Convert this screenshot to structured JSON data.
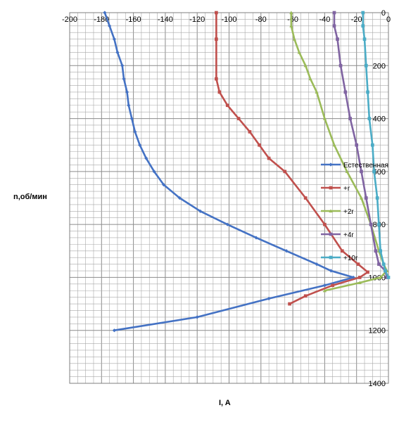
{
  "chart_data": {
    "type": "line",
    "xlabel": "I, A",
    "ylabel": "n,об/мин",
    "xlim": [
      -200,
      0
    ],
    "ylim": [
      0,
      1400
    ],
    "x_axis_position": "top",
    "y_axis_position": "right",
    "y_inverted": true,
    "x_ticks": [
      -200,
      -180,
      -160,
      -140,
      -120,
      -100,
      -80,
      -60,
      -40,
      -20,
      0
    ],
    "y_ticks": [
      0,
      200,
      400,
      600,
      800,
      1000,
      1200,
      1400
    ],
    "grid": true,
    "legend_position": "right",
    "series": [
      {
        "name": "Естественная",
        "color": "#4472C4",
        "points": [
          [
            -178,
            0
          ],
          [
            -175,
            50
          ],
          [
            -172,
            100
          ],
          [
            -170,
            150
          ],
          [
            -167,
            200
          ],
          [
            -166,
            250
          ],
          [
            -164,
            300
          ],
          [
            -163,
            350
          ],
          [
            -161,
            400
          ],
          [
            -159,
            450
          ],
          [
            -156,
            500
          ],
          [
            -152,
            550
          ],
          [
            -147,
            600
          ],
          [
            -141,
            650
          ],
          [
            -131,
            700
          ],
          [
            -118,
            750
          ],
          [
            -101,
            800
          ],
          [
            -83,
            850
          ],
          [
            -64,
            900
          ],
          [
            -45,
            950
          ],
          [
            -36,
            975
          ],
          [
            -22,
            1000
          ],
          [
            -40,
            1030
          ],
          [
            -75,
            1080
          ],
          [
            -120,
            1150
          ],
          [
            -172,
            1200
          ]
        ]
      },
      {
        "name": "+r",
        "color": "#C0504D",
        "points": [
          [
            -108,
            0
          ],
          [
            -108,
            100
          ],
          [
            -108,
            250
          ],
          [
            -106,
            300
          ],
          [
            -101,
            350
          ],
          [
            -94,
            400
          ],
          [
            -87,
            450
          ],
          [
            -81,
            500
          ],
          [
            -75,
            550
          ],
          [
            -65,
            600
          ],
          [
            -52,
            700
          ],
          [
            -40,
            800
          ],
          [
            -29,
            900
          ],
          [
            -19,
            950
          ],
          [
            -13,
            980
          ],
          [
            -18,
            1000
          ],
          [
            -35,
            1030
          ],
          [
            -52,
            1070
          ],
          [
            -62,
            1100
          ]
        ]
      },
      {
        "name": "+2r",
        "color": "#9BBB59",
        "points": [
          [
            -61,
            0
          ],
          [
            -61,
            50
          ],
          [
            -59,
            100
          ],
          [
            -56,
            150
          ],
          [
            -52,
            200
          ],
          [
            -49,
            250
          ],
          [
            -45,
            300
          ],
          [
            -40,
            400
          ],
          [
            -34,
            500
          ],
          [
            -26,
            600
          ],
          [
            -17,
            700
          ],
          [
            -11,
            800
          ],
          [
            -6,
            900
          ],
          [
            -3,
            950
          ],
          [
            -1,
            975
          ],
          [
            -5,
            1000
          ],
          [
            -18,
            1020
          ],
          [
            -40,
            1050
          ]
        ]
      },
      {
        "name": "+4r",
        "color": "#8064A2",
        "points": [
          [
            -34,
            0
          ],
          [
            -34,
            50
          ],
          [
            -32,
            100
          ],
          [
            -30,
            200
          ],
          [
            -27,
            300
          ],
          [
            -24,
            400
          ],
          [
            -20,
            500
          ],
          [
            -17,
            600
          ],
          [
            -14,
            700
          ],
          [
            -11,
            800
          ],
          [
            -8,
            900
          ],
          [
            -6,
            950
          ],
          [
            -2,
            975
          ],
          [
            -1,
            1000
          ]
        ]
      },
      {
        "name": "+10r",
        "color": "#4BACC6",
        "points": [
          [
            -16,
            0
          ],
          [
            -16,
            50
          ],
          [
            -15,
            100
          ],
          [
            -14,
            200
          ],
          [
            -13,
            300
          ],
          [
            -12,
            400
          ],
          [
            -10,
            500
          ],
          [
            -9,
            600
          ],
          [
            -7,
            700
          ],
          [
            -6,
            800
          ],
          [
            -5,
            900
          ],
          [
            -3,
            950
          ],
          [
            -2,
            975
          ],
          [
            0,
            1000
          ]
        ]
      }
    ]
  }
}
